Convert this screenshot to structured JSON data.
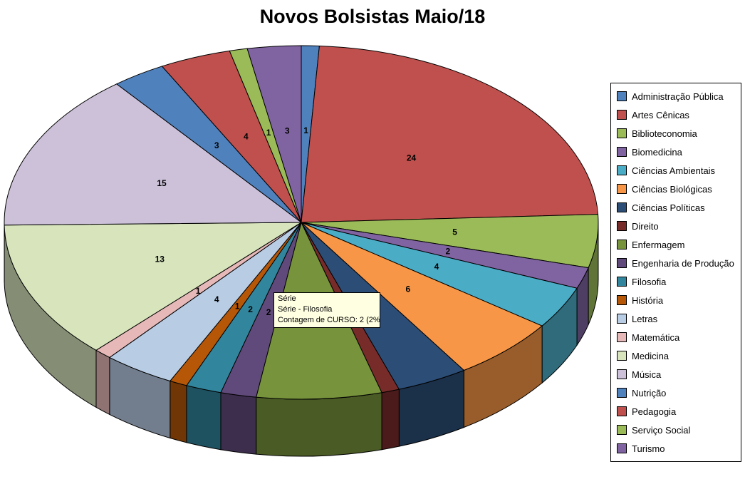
{
  "chart_data": {
    "type": "pie",
    "title": "Novos Bolsistas Maio/18",
    "style": "3d-pie",
    "legend_position": "right",
    "data_labels": "value",
    "start_angle_deg": 0,
    "categories": [
      "Administração Pública",
      "Artes Cênicas",
      "Biblioteconomia",
      "Biomedicina",
      "Ciências Ambientais",
      "Ciências Biológicas",
      "Ciências Políticas",
      "Direito",
      "Enfermagem",
      "Engenharia de Produção",
      "Filosofia",
      "História",
      "Letras",
      "Matemática",
      "Medicina",
      "Música",
      "Nutrição",
      "Pedagogia",
      "Serviço Social",
      "Turismo"
    ],
    "values": [
      1,
      24,
      5,
      2,
      4,
      6,
      4,
      1,
      7,
      2,
      2,
      1,
      4,
      1,
      13,
      15,
      3,
      4,
      1,
      3
    ],
    "colors": [
      "#4F81BD",
      "#C0504D",
      "#9BBB59",
      "#8064A2",
      "#4BACC6",
      "#F79646",
      "#2C4D75",
      "#772C2A",
      "#77933C",
      "#604A7B",
      "#31859C",
      "#B65708",
      "#B8CCE4",
      "#E6B9B8",
      "#D7E4BC",
      "#CCC1D9",
      "#4F81BD",
      "#C0504D",
      "#9BBB59",
      "#8064A2"
    ],
    "label_visible": [
      true,
      true,
      true,
      true,
      true,
      true,
      false,
      false,
      false,
      true,
      true,
      true,
      true,
      true,
      true,
      true,
      true,
      true,
      true,
      true
    ]
  },
  "tooltip": {
    "line1": "Série",
    "line2": "Série - Filosofia",
    "line3": "Contagem de CURSO: 2 (2%)"
  }
}
